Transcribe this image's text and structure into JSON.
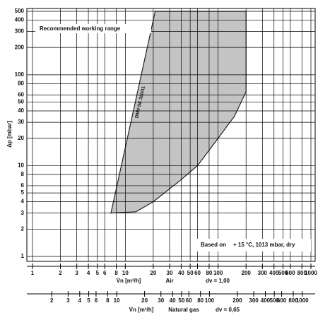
{
  "chart_data": {
    "type": "area",
    "log_x": true,
    "log_y": true,
    "grid": true,
    "ylabel": "Δp [mbar]",
    "annotations": {
      "working_range": "Recommended working range",
      "curve_label": "DMV-SE 320/11",
      "conditions_prefix": "Based on",
      "conditions": "+ 15 °C, 1013 mbar, dry"
    },
    "xlabel": "V̇n [m³/h]",
    "x_medium": "Air",
    "x_density": "dv = 1,00",
    "x2label": "V̇n [m³/h]",
    "x2_medium": "Natural gas",
    "x2_density": "dv = 0,65",
    "xlim": [
      1,
      1000
    ],
    "xticks": [
      1,
      2,
      3,
      4,
      5,
      6,
      8,
      10,
      20,
      30,
      40,
      50,
      60,
      80,
      100,
      200,
      300,
      400,
      500,
      600,
      800,
      1000
    ],
    "x2lim": [
      1.24,
      1240
    ],
    "x2ticks": [
      2,
      3,
      4,
      5,
      6,
      8,
      10,
      20,
      30,
      40,
      50,
      60,
      80,
      100,
      200,
      300,
      400,
      500,
      600,
      800,
      1000
    ],
    "ylim": [
      1,
      500
    ],
    "yticks": [
      1,
      2,
      3,
      4,
      5,
      6,
      8,
      10,
      20,
      30,
      40,
      50,
      60,
      80,
      100,
      200,
      300,
      400,
      500
    ],
    "series": [
      {
        "color": "#c4c4c4",
        "x": [
          7,
          21,
          200,
          200,
          150,
          100,
          60,
          40,
          20,
          13
        ],
        "values": [
          3,
          500,
          500,
          65,
          35,
          20,
          10,
          7,
          4,
          3.1
        ]
      }
    ]
  }
}
